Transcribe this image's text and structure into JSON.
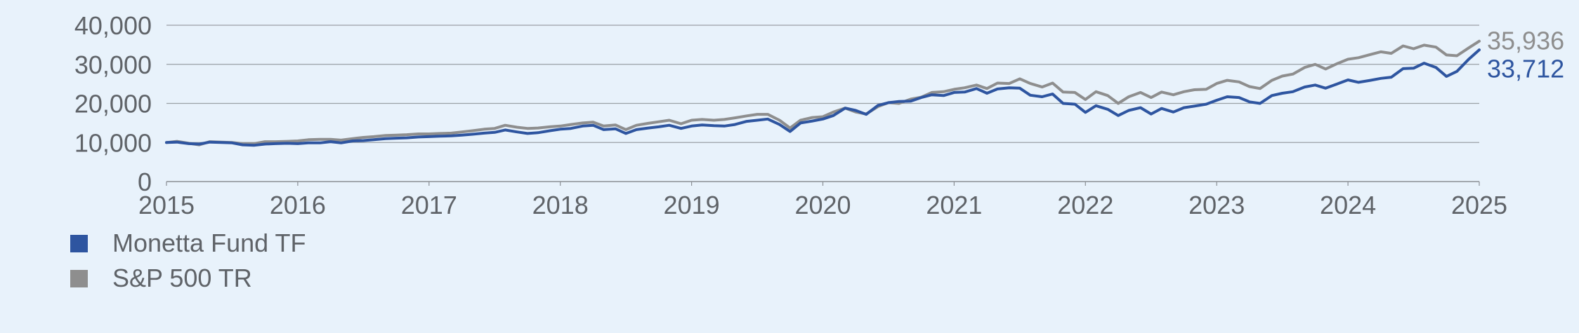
{
  "chart_data": {
    "type": "line",
    "title": "",
    "xlabel": "",
    "ylabel": "",
    "x_ticks": [
      "2015",
      "2016",
      "2017",
      "2018",
      "2019",
      "2020",
      "2021",
      "2022",
      "2023",
      "2024",
      "2025"
    ],
    "y_ticks": [
      "0",
      "10,000",
      "20,000",
      "30,000",
      "40,000"
    ],
    "xlim": [
      2015,
      2025
    ],
    "ylim": [
      0,
      40000
    ],
    "grid": "horizontal",
    "legend_position": "bottom-left",
    "series": [
      {
        "name": "Monetta Fund TF",
        "color": "#2e55a0",
        "end_label": "33,712",
        "points": [
          [
            2015.0,
            10000
          ],
          [
            2015.08,
            10100
          ],
          [
            2015.17,
            9700
          ],
          [
            2015.25,
            9600
          ],
          [
            2015.33,
            10100
          ],
          [
            2015.42,
            10000
          ],
          [
            2015.5,
            9900
          ],
          [
            2015.58,
            9400
          ],
          [
            2015.67,
            9300
          ],
          [
            2015.75,
            9600
          ],
          [
            2015.83,
            9700
          ],
          [
            2015.92,
            9800
          ],
          [
            2016.0,
            9700
          ],
          [
            2016.08,
            9900
          ],
          [
            2016.17,
            9900
          ],
          [
            2016.25,
            10200
          ],
          [
            2016.33,
            9900
          ],
          [
            2016.42,
            10400
          ],
          [
            2016.5,
            10500
          ],
          [
            2016.58,
            10700
          ],
          [
            2016.67,
            11000
          ],
          [
            2016.75,
            11100
          ],
          [
            2016.83,
            11200
          ],
          [
            2016.92,
            11400
          ],
          [
            2017.0,
            11500
          ],
          [
            2017.08,
            11600
          ],
          [
            2017.17,
            11700
          ],
          [
            2017.25,
            11900
          ],
          [
            2017.33,
            12100
          ],
          [
            2017.42,
            12400
          ],
          [
            2017.5,
            12600
          ],
          [
            2017.58,
            13200
          ],
          [
            2017.67,
            12700
          ],
          [
            2017.75,
            12300
          ],
          [
            2017.83,
            12500
          ],
          [
            2017.92,
            13000
          ],
          [
            2018.0,
            13400
          ],
          [
            2018.08,
            13600
          ],
          [
            2018.17,
            14200
          ],
          [
            2018.25,
            14400
          ],
          [
            2018.33,
            13300
          ],
          [
            2018.42,
            13500
          ],
          [
            2018.5,
            12300
          ],
          [
            2018.58,
            13300
          ],
          [
            2018.67,
            13700
          ],
          [
            2018.75,
            14000
          ],
          [
            2018.83,
            14400
          ],
          [
            2018.92,
            13600
          ],
          [
            2019.0,
            14200
          ],
          [
            2019.08,
            14500
          ],
          [
            2019.17,
            14300
          ],
          [
            2019.25,
            14200
          ],
          [
            2019.33,
            14600
          ],
          [
            2019.42,
            15400
          ],
          [
            2019.5,
            15700
          ],
          [
            2019.58,
            16000
          ],
          [
            2019.67,
            14600
          ],
          [
            2019.75,
            12800
          ],
          [
            2019.83,
            15000
          ],
          [
            2019.92,
            15500
          ],
          [
            2020.0,
            16000
          ],
          [
            2020.08,
            16900
          ],
          [
            2020.17,
            18800
          ],
          [
            2020.25,
            18200
          ],
          [
            2020.33,
            17200
          ],
          [
            2020.42,
            19500
          ],
          [
            2020.5,
            20200
          ],
          [
            2020.58,
            20500
          ],
          [
            2020.67,
            20600
          ],
          [
            2020.75,
            21500
          ],
          [
            2020.83,
            22200
          ],
          [
            2020.92,
            22000
          ],
          [
            2021.0,
            22800
          ],
          [
            2021.08,
            22900
          ],
          [
            2021.17,
            23800
          ],
          [
            2021.25,
            22600
          ],
          [
            2021.33,
            23700
          ],
          [
            2021.42,
            24000
          ],
          [
            2021.5,
            23900
          ],
          [
            2021.58,
            22100
          ],
          [
            2021.67,
            21700
          ],
          [
            2021.75,
            22400
          ],
          [
            2021.83,
            20000
          ],
          [
            2021.92,
            19800
          ],
          [
            2022.0,
            17700
          ],
          [
            2022.08,
            19400
          ],
          [
            2022.17,
            18500
          ],
          [
            2022.25,
            16900
          ],
          [
            2022.33,
            18200
          ],
          [
            2022.42,
            18900
          ],
          [
            2022.5,
            17300
          ],
          [
            2022.58,
            18700
          ],
          [
            2022.67,
            17800
          ],
          [
            2022.75,
            18900
          ],
          [
            2022.83,
            19300
          ],
          [
            2022.92,
            19800
          ],
          [
            2023.0,
            20800
          ],
          [
            2023.08,
            21700
          ],
          [
            2023.17,
            21500
          ],
          [
            2023.25,
            20400
          ],
          [
            2023.33,
            20000
          ],
          [
            2023.42,
            22000
          ],
          [
            2023.5,
            22600
          ],
          [
            2023.58,
            23000
          ],
          [
            2023.67,
            24200
          ],
          [
            2023.75,
            24700
          ],
          [
            2023.83,
            23900
          ],
          [
            2023.92,
            25000
          ],
          [
            2024.0,
            26000
          ],
          [
            2024.08,
            25400
          ],
          [
            2024.17,
            25900
          ],
          [
            2024.25,
            26400
          ],
          [
            2024.33,
            26700
          ],
          [
            2024.42,
            28900
          ],
          [
            2024.5,
            29000
          ],
          [
            2024.58,
            30300
          ],
          [
            2024.67,
            29200
          ],
          [
            2024.75,
            26900
          ],
          [
            2024.83,
            28200
          ],
          [
            2024.92,
            31300
          ],
          [
            2025.0,
            33712
          ]
        ]
      },
      {
        "name": "S&P 500 TR",
        "color": "#8e8e8e",
        "end_label": "35,936",
        "points": [
          [
            2015.0,
            10000
          ],
          [
            2015.08,
            10300
          ],
          [
            2015.17,
            9800
          ],
          [
            2015.25,
            9400
          ],
          [
            2015.33,
            10200
          ],
          [
            2015.42,
            10100
          ],
          [
            2015.5,
            10000
          ],
          [
            2015.58,
            9700
          ],
          [
            2015.67,
            9700
          ],
          [
            2015.75,
            10200
          ],
          [
            2015.83,
            10200
          ],
          [
            2015.92,
            10300
          ],
          [
            2016.0,
            10400
          ],
          [
            2016.08,
            10700
          ],
          [
            2016.17,
            10800
          ],
          [
            2016.25,
            10800
          ],
          [
            2016.33,
            10600
          ],
          [
            2016.42,
            11000
          ],
          [
            2016.5,
            11300
          ],
          [
            2016.58,
            11500
          ],
          [
            2016.67,
            11800
          ],
          [
            2016.75,
            11900
          ],
          [
            2016.83,
            12000
          ],
          [
            2016.92,
            12200
          ],
          [
            2017.0,
            12200
          ],
          [
            2017.08,
            12300
          ],
          [
            2017.17,
            12400
          ],
          [
            2017.25,
            12700
          ],
          [
            2017.33,
            13000
          ],
          [
            2017.42,
            13400
          ],
          [
            2017.5,
            13600
          ],
          [
            2017.58,
            14400
          ],
          [
            2017.67,
            13900
          ],
          [
            2017.75,
            13600
          ],
          [
            2017.83,
            13700
          ],
          [
            2017.92,
            14000
          ],
          [
            2018.0,
            14200
          ],
          [
            2018.08,
            14600
          ],
          [
            2018.17,
            15000
          ],
          [
            2018.25,
            15200
          ],
          [
            2018.33,
            14200
          ],
          [
            2018.42,
            14500
          ],
          [
            2018.5,
            13300
          ],
          [
            2018.58,
            14400
          ],
          [
            2018.67,
            14900
          ],
          [
            2018.75,
            15300
          ],
          [
            2018.83,
            15700
          ],
          [
            2018.92,
            14800
          ],
          [
            2019.0,
            15700
          ],
          [
            2019.08,
            15900
          ],
          [
            2019.17,
            15700
          ],
          [
            2019.25,
            15900
          ],
          [
            2019.33,
            16300
          ],
          [
            2019.42,
            16800
          ],
          [
            2019.5,
            17200
          ],
          [
            2019.58,
            17200
          ],
          [
            2019.67,
            15700
          ],
          [
            2019.75,
            13700
          ],
          [
            2019.83,
            15700
          ],
          [
            2019.92,
            16400
          ],
          [
            2020.0,
            16600
          ],
          [
            2020.08,
            17800
          ],
          [
            2020.17,
            18800
          ],
          [
            2020.25,
            17800
          ],
          [
            2020.33,
            17300
          ],
          [
            2020.42,
            19200
          ],
          [
            2020.5,
            20200
          ],
          [
            2020.58,
            20000
          ],
          [
            2020.67,
            21100
          ],
          [
            2020.75,
            21600
          ],
          [
            2020.83,
            22800
          ],
          [
            2020.92,
            23000
          ],
          [
            2021.0,
            23600
          ],
          [
            2021.08,
            24000
          ],
          [
            2021.17,
            24700
          ],
          [
            2021.25,
            23800
          ],
          [
            2021.33,
            25200
          ],
          [
            2021.42,
            25100
          ],
          [
            2021.5,
            26300
          ],
          [
            2021.58,
            25100
          ],
          [
            2021.67,
            24200
          ],
          [
            2021.75,
            25200
          ],
          [
            2021.83,
            22900
          ],
          [
            2021.92,
            22800
          ],
          [
            2022.0,
            21000
          ],
          [
            2022.08,
            23000
          ],
          [
            2022.17,
            22000
          ],
          [
            2022.25,
            20000
          ],
          [
            2022.33,
            21700
          ],
          [
            2022.42,
            22800
          ],
          [
            2022.5,
            21500
          ],
          [
            2022.58,
            22900
          ],
          [
            2022.67,
            22200
          ],
          [
            2022.75,
            23000
          ],
          [
            2022.83,
            23500
          ],
          [
            2022.92,
            23600
          ],
          [
            2023.0,
            25100
          ],
          [
            2023.08,
            25900
          ],
          [
            2023.17,
            25500
          ],
          [
            2023.25,
            24300
          ],
          [
            2023.33,
            23800
          ],
          [
            2023.42,
            25900
          ],
          [
            2023.5,
            27000
          ],
          [
            2023.58,
            27500
          ],
          [
            2023.67,
            29200
          ],
          [
            2023.75,
            30000
          ],
          [
            2023.83,
            28800
          ],
          [
            2023.92,
            30200
          ],
          [
            2024.0,
            31300
          ],
          [
            2024.08,
            31700
          ],
          [
            2024.17,
            32500
          ],
          [
            2024.25,
            33200
          ],
          [
            2024.33,
            32800
          ],
          [
            2024.42,
            34700
          ],
          [
            2024.5,
            34000
          ],
          [
            2024.58,
            34900
          ],
          [
            2024.67,
            34400
          ],
          [
            2024.75,
            32400
          ],
          [
            2024.83,
            32200
          ],
          [
            2024.92,
            34200
          ],
          [
            2025.0,
            35936
          ]
        ]
      }
    ]
  }
}
